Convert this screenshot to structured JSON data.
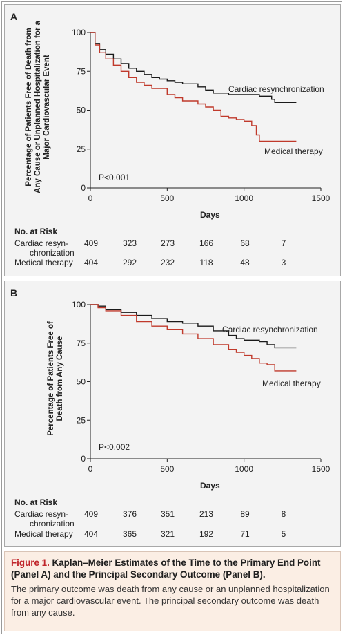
{
  "chart_data": [
    {
      "type": "line",
      "panel_label": "A",
      "ylabel": "Percentage of Patients Free of Death from Any Cause or Unplanned Hospitalization for a Major Cardiovascular Event",
      "xlabel": "Days",
      "xlim": [
        0,
        1500
      ],
      "ylim": [
        0,
        100
      ],
      "x_ticks": [
        0,
        500,
        1000,
        1500
      ],
      "y_ticks": [
        0,
        25,
        50,
        75,
        100
      ],
      "p_value": "P<0.001",
      "series": [
        {
          "name": "Cardiac resynchronization",
          "color": "#1a1a1a",
          "points": [
            [
              0,
              100
            ],
            [
              30,
              93
            ],
            [
              60,
              89
            ],
            [
              100,
              86
            ],
            [
              150,
              83
            ],
            [
              200,
              80
            ],
            [
              250,
              77
            ],
            [
              300,
              75
            ],
            [
              350,
              73
            ],
            [
              400,
              71
            ],
            [
              450,
              70
            ],
            [
              500,
              69
            ],
            [
              550,
              68
            ],
            [
              600,
              67
            ],
            [
              700,
              65
            ],
            [
              750,
              63
            ],
            [
              800,
              61
            ],
            [
              900,
              60
            ],
            [
              1000,
              60
            ],
            [
              1050,
              60
            ],
            [
              1100,
              59
            ],
            [
              1180,
              57
            ],
            [
              1200,
              55
            ],
            [
              1340,
              55
            ]
          ]
        },
        {
          "name": "Medical therapy",
          "color": "#c0392b",
          "points": [
            [
              0,
              100
            ],
            [
              30,
              92
            ],
            [
              60,
              87
            ],
            [
              100,
              83
            ],
            [
              150,
              79
            ],
            [
              200,
              75
            ],
            [
              250,
              71
            ],
            [
              300,
              68
            ],
            [
              350,
              66
            ],
            [
              400,
              64
            ],
            [
              500,
              60
            ],
            [
              550,
              58
            ],
            [
              600,
              56
            ],
            [
              700,
              54
            ],
            [
              750,
              52
            ],
            [
              800,
              50
            ],
            [
              850,
              46
            ],
            [
              900,
              45
            ],
            [
              950,
              44
            ],
            [
              1000,
              43
            ],
            [
              1050,
              40
            ],
            [
              1080,
              34
            ],
            [
              1100,
              30
            ],
            [
              1340,
              30
            ]
          ]
        }
      ],
      "at_risk": {
        "title": "No. at Risk",
        "rows": [
          {
            "label_line1": "Cardiac resyn-",
            "label_line2": "chronization",
            "values": [
              "409",
              "323",
              "273",
              "166",
              "68",
              "7"
            ]
          },
          {
            "label_line1": "Medical therapy",
            "label_line2": "",
            "values": [
              "404",
              "292",
              "232",
              "118",
              "48",
              "3"
            ]
          }
        ]
      }
    },
    {
      "type": "line",
      "panel_label": "B",
      "ylabel": "Percentage of Patients Free of Death from Any Cause",
      "xlabel": "Days",
      "xlim": [
        0,
        1500
      ],
      "ylim": [
        0,
        100
      ],
      "x_ticks": [
        0,
        500,
        1000,
        1500
      ],
      "y_ticks": [
        0,
        25,
        50,
        75,
        100
      ],
      "p_value": "P<0.002",
      "series": [
        {
          "name": "Cardiac resynchronization",
          "color": "#1a1a1a",
          "points": [
            [
              0,
              100
            ],
            [
              50,
              99
            ],
            [
              100,
              97
            ],
            [
              200,
              95
            ],
            [
              300,
              93
            ],
            [
              400,
              91
            ],
            [
              500,
              89
            ],
            [
              600,
              88
            ],
            [
              700,
              86
            ],
            [
              800,
              83
            ],
            [
              900,
              80
            ],
            [
              950,
              78
            ],
            [
              1000,
              77
            ],
            [
              1100,
              76
            ],
            [
              1150,
              74
            ],
            [
              1200,
              72
            ],
            [
              1340,
              72
            ]
          ]
        },
        {
          "name": "Medical therapy",
          "color": "#c0392b",
          "points": [
            [
              0,
              100
            ],
            [
              50,
              98
            ],
            [
              100,
              96
            ],
            [
              200,
              93
            ],
            [
              300,
              89
            ],
            [
              400,
              86
            ],
            [
              500,
              84
            ],
            [
              600,
              81
            ],
            [
              700,
              78
            ],
            [
              800,
              74
            ],
            [
              900,
              71
            ],
            [
              950,
              69
            ],
            [
              1000,
              67
            ],
            [
              1050,
              65
            ],
            [
              1100,
              62
            ],
            [
              1150,
              61
            ],
            [
              1200,
              57
            ],
            [
              1340,
              57
            ]
          ]
        }
      ],
      "at_risk": {
        "title": "No. at Risk",
        "rows": [
          {
            "label_line1": "Cardiac resyn-",
            "label_line2": "chronization",
            "values": [
              "409",
              "376",
              "351",
              "213",
              "89",
              "8"
            ]
          },
          {
            "label_line1": "Medical therapy",
            "label_line2": "",
            "values": [
              "404",
              "365",
              "321",
              "192",
              "71",
              "5"
            ]
          }
        ]
      }
    }
  ],
  "caption": {
    "figure_label": "Figure 1.",
    "title": "Kaplan–Meier Estimates of the Time to the Primary End Point (Panel A) and the Principal Secondary Outcome (Panel B).",
    "body": "The primary outcome was death from any cause or an unplanned hospitalization for a major cardiovascular event. The principal secondary outcome was death from any cause."
  }
}
